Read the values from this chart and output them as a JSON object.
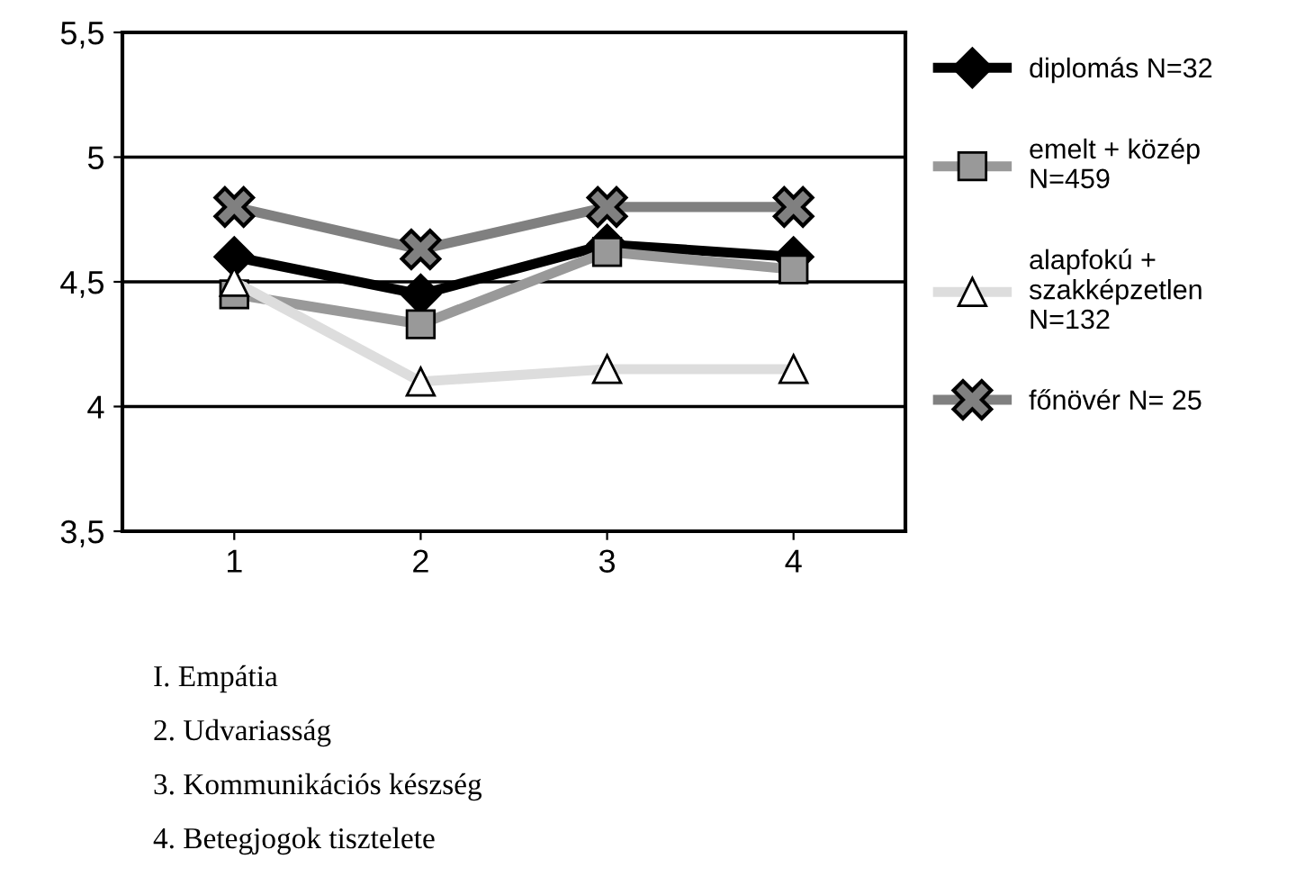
{
  "chart_data": {
    "type": "line",
    "categories": [
      "1",
      "2",
      "3",
      "4"
    ],
    "series": [
      {
        "name": "diplomás N=32",
        "color": "#000000",
        "marker": "diamond",
        "values": [
          4.6,
          4.45,
          4.65,
          4.6
        ]
      },
      {
        "name": "emelt + közép\nN=459",
        "color": "#999999",
        "marker": "square",
        "values": [
          4.45,
          4.33,
          4.62,
          4.55
        ]
      },
      {
        "name": "alapfokú +\nszakképzetlen\nN=132",
        "color": "#dddddd",
        "marker": "triangle",
        "values": [
          4.5,
          4.1,
          4.15,
          4.15
        ]
      },
      {
        "name": "főnövér N= 25",
        "color": "#808080",
        "marker": "cross",
        "values": [
          4.8,
          4.63,
          4.8,
          4.8
        ]
      }
    ],
    "ylim": [
      3.5,
      5.5
    ],
    "yticks": [
      {
        "value": 3.5,
        "label": "3,5"
      },
      {
        "value": 4,
        "label": "4"
      },
      {
        "value": 4.5,
        "label": "4,5"
      },
      {
        "value": 5,
        "label": "5"
      },
      {
        "value": 5.5,
        "label": "5,5"
      }
    ],
    "grid": "y",
    "legend": "right",
    "annotations": [
      "I. Empátia",
      "2. Udvariasság",
      "3. Kommunikációs készség",
      "4. Betegjogok tisztelete"
    ]
  }
}
